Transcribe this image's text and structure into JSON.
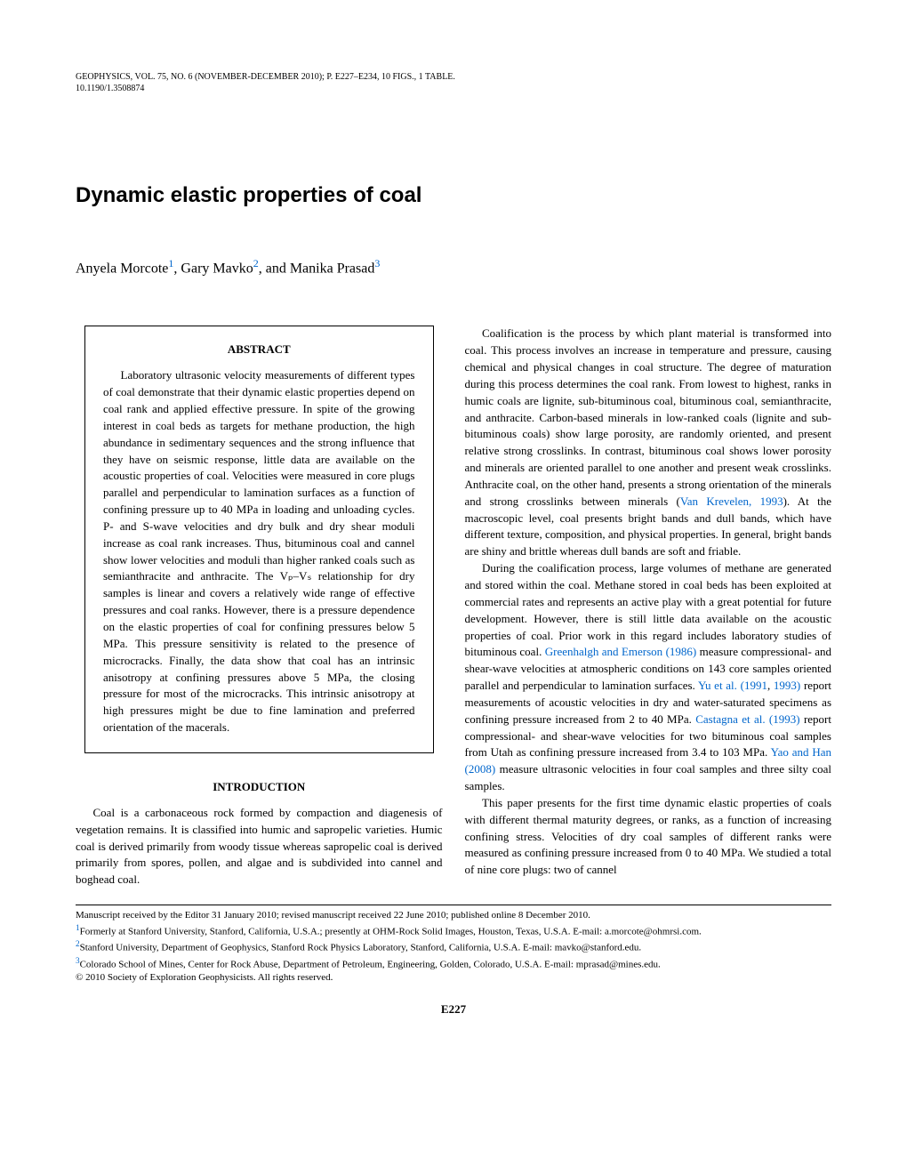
{
  "header": {
    "line1": "GEOPHYSICS, VOL. 75, NO. 6 (NOVEMBER-DECEMBER 2010); P. E227–E234, 10 FIGS., 1 TABLE.",
    "line2": "10.1190/1.3508874"
  },
  "title": "Dynamic elastic properties of coal",
  "authors": {
    "a1_name": "Anyela Morcote",
    "a1_sup": "1",
    "a2_name": "Gary Mavko",
    "a2_sup": "2",
    "a3_name": "Manika Prasad",
    "a3_sup": "3",
    "sep1": ", ",
    "sep2": ", and "
  },
  "abstract": {
    "heading": "ABSTRACT",
    "text": "Laboratory ultrasonic velocity measurements of different types of coal demonstrate that their dynamic elastic properties depend on coal rank and applied effective pressure. In spite of the growing interest in coal beds as targets for methane production, the high abundance in sedimentary sequences and the strong influence that they have on seismic response, little data are available on the acoustic properties of coal. Velocities were measured in core plugs parallel and perpendicular to lamination surfaces as a function of confining pressure up to 40 MPa in loading and unloading cycles. P- and S-wave velocities and dry bulk and dry shear moduli increase as coal rank increases. Thus, bituminous coal and cannel show lower velocities and moduli than higher ranked coals such as semianthracite and anthracite. The Vₚ–Vₛ relationship for dry samples is linear and covers a relatively wide range of effective pressures and coal ranks. However, there is a pressure dependence on the elastic properties of coal for confining pressures below 5 MPa. This pressure sensitivity is related to the presence of microcracks. Finally, the data show that coal has an intrinsic anisotropy at confining pressures above 5 MPa, the closing pressure for most of the microcracks. This intrinsic anisotropy at high pressures might be due to fine lamination and preferred orientation of the macerals."
  },
  "introduction": {
    "heading": "INTRODUCTION",
    "p1": "Coal is a carbonaceous rock formed by compaction and diagenesis of vegetation remains. It is classified into humic and sapropelic varieties. Humic coal is derived primarily from woody tissue whereas sapropelic coal is derived primarily from spores, pollen, and algae and is subdivided into cannel and boghead coal."
  },
  "rightcol": {
    "p1_a": "Coalification is the process by which plant material is transformed into coal. This process involves an increase in temperature and pressure, causing chemical and physical changes in coal structure. The degree of maturation during this process determines the coal rank. From lowest to highest, ranks in humic coals are lignite, sub-bituminous coal, bituminous coal, semianthracite, and anthracite. Carbon-based minerals in low-ranked coals (lignite and sub-bituminous coals) show large porosity, are randomly oriented, and present relative strong crosslinks. In contrast, bituminous coal shows lower porosity and minerals are oriented parallel to one another and present weak crosslinks. Anthracite coal, on the other hand, presents a strong orientation of the minerals and strong crosslinks between minerals (",
    "p1_cite1": "Van Krevelen, 1993",
    "p1_b": "). At the macroscopic level, coal presents bright bands and dull bands, which have different texture, composition, and physical properties. In general, bright bands are shiny and brittle whereas dull bands are soft and friable.",
    "p2_a": "During the coalification process, large volumes of methane are generated and stored within the coal. Methane stored in coal beds has been exploited at commercial rates and represents an active play with a great potential for future development. However, there is still little data available on the acoustic properties of coal. Prior work in this regard includes laboratory studies of bituminous coal. ",
    "p2_cite1": "Greenhalgh and Emerson (1986)",
    "p2_b": " measure compressional- and shear-wave velocities at atmospheric conditions on 143 core samples oriented parallel and perpendicular to lamination surfaces. ",
    "p2_cite2": "Yu et al. (1991",
    "p2_c": ", ",
    "p2_cite3": "1993)",
    "p2_d": " report measurements of acoustic velocities in dry and water-saturated specimens as confining pressure increased from 2 to 40 MPa. ",
    "p2_cite4": "Castagna et al. (1993)",
    "p2_e": " report compressional- and shear-wave velocities for two bituminous coal samples from Utah as confining pressure increased from 3.4 to 103 MPa. ",
    "p2_cite5": "Yao and Han (2008)",
    "p2_f": " measure ultrasonic velocities in four coal samples and three silty coal samples.",
    "p3": "This paper presents for the first time dynamic elastic properties of coals with different thermal maturity degrees, or ranks, as a function of increasing confining stress. Velocities of dry coal samples of different ranks were measured as confining pressure increased from 0 to 40 MPa. We studied a total of nine core plugs: two of cannel"
  },
  "footnotes": {
    "manuscript": "Manuscript received by the Editor 31 January 2010; revised manuscript received 22 June 2010; published online 8 December 2010.",
    "f1_sup": "1",
    "f1": "Formerly at Stanford University, Stanford, California, U.S.A.; presently at OHM-Rock Solid Images, Houston, Texas, U.S.A. E-mail: a.morcote@ohmrsi.com.",
    "f2_sup": "2",
    "f2": "Stanford University, Department of Geophysics, Stanford Rock Physics Laboratory, Stanford, California, U.S.A. E-mail: mavko@stanford.edu.",
    "f3_sup": "3",
    "f3": "Colorado School of Mines, Center for Rock Abuse, Department of Petroleum, Engineering, Golden, Colorado, U.S.A. E-mail: mprasad@mines.edu.",
    "copyright": "© 2010 Society of Exploration Geophysicists. All rights reserved."
  },
  "page_number": "E227",
  "colors": {
    "text": "#000000",
    "link": "#0066cc",
    "bg": "#ffffff"
  }
}
